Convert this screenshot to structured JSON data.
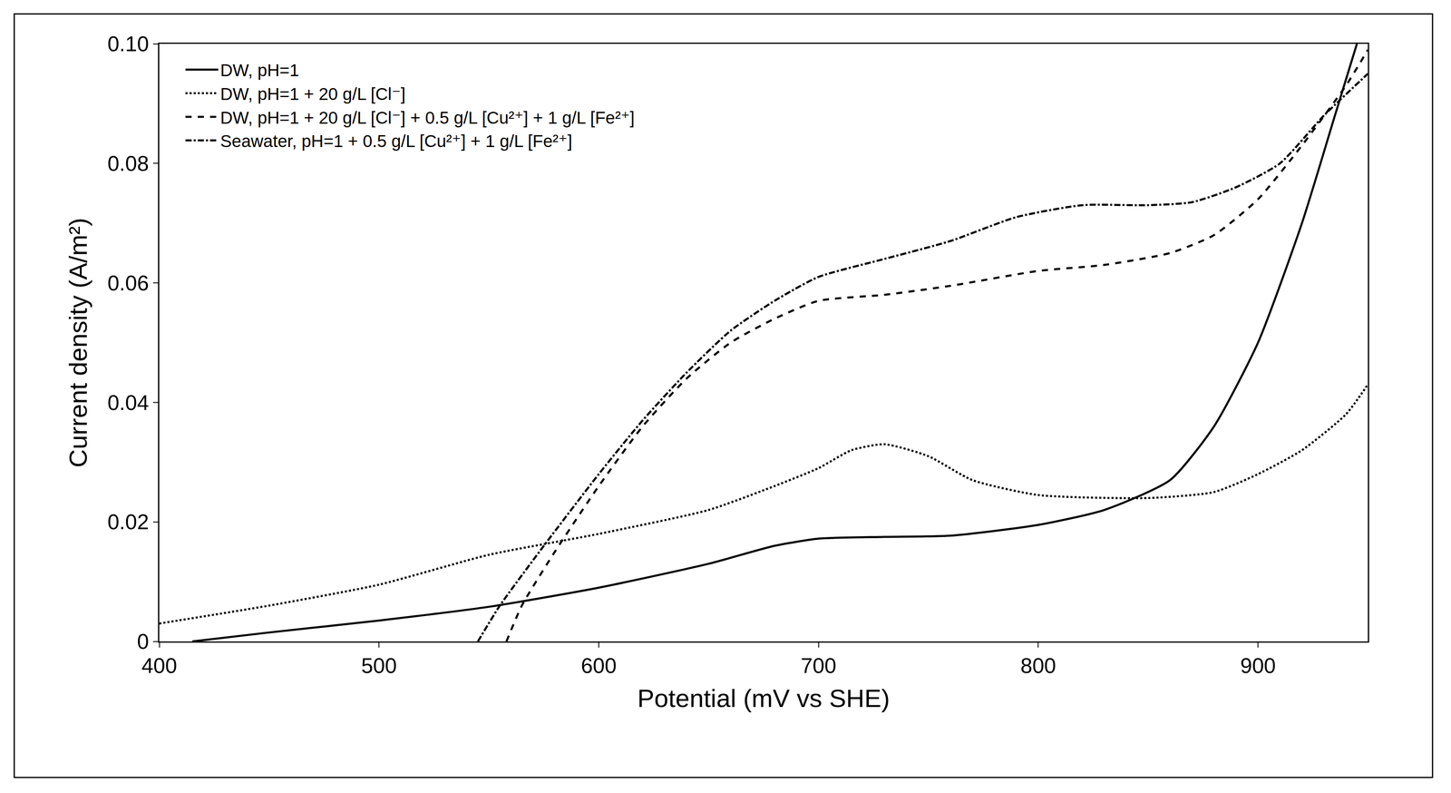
{
  "chart_data": {
    "type": "line",
    "x_label": "Potential (mV vs SHE)",
    "y_label": "Current density (A/m²)",
    "xlim": [
      400,
      950
    ],
    "xticks": [
      400,
      500,
      600,
      700,
      800,
      900
    ],
    "ylim": [
      0,
      0.1
    ],
    "yticks": [
      0,
      0.02,
      0.04,
      0.06,
      0.08,
      {
        "value": 0.1,
        "label": "0.10"
      }
    ],
    "grid": false,
    "legend": "upper left",
    "series": [
      {
        "name": "DW, pH=1",
        "color": "#000000",
        "line_style": "solid",
        "x": [
          415,
          450,
          500,
          550,
          600,
          650,
          680,
          700,
          730,
          760,
          800,
          830,
          860,
          880,
          900,
          920,
          935,
          945
        ],
        "values": [
          0,
          0.0015,
          0.0035,
          0.0058,
          0.009,
          0.013,
          0.016,
          0.0172,
          0.0175,
          0.0177,
          0.0195,
          0.022,
          0.027,
          0.036,
          0.05,
          0.07,
          0.088,
          0.1
        ]
      },
      {
        "name": "DW, pH=1 + 20 g/L [Cl⁻]",
        "color": "#000000",
        "line_style": "dot",
        "x": [
          400,
          450,
          500,
          550,
          600,
          650,
          680,
          700,
          715,
          730,
          750,
          770,
          800,
          850,
          880,
          900,
          920,
          940,
          950
        ],
        "values": [
          0.003,
          0.006,
          0.0095,
          0.0145,
          0.018,
          0.022,
          0.026,
          0.029,
          0.032,
          0.033,
          0.031,
          0.027,
          0.0245,
          0.024,
          0.025,
          0.028,
          0.032,
          0.038,
          0.043
        ]
      },
      {
        "name": "DW, pH=1 + 20 g/L [Cl⁻] + 0.5 g/L [Cu²⁺] + 1 g/L [Fe²⁺]",
        "color": "#000000",
        "line_style": "dash",
        "x": [
          558,
          565,
          580,
          600,
          620,
          640,
          660,
          680,
          700,
          730,
          760,
          800,
          830,
          860,
          880,
          900,
          920,
          940,
          950
        ],
        "values": [
          0,
          0.006,
          0.015,
          0.026,
          0.036,
          0.044,
          0.05,
          0.054,
          0.057,
          0.058,
          0.0595,
          0.062,
          0.063,
          0.065,
          0.068,
          0.074,
          0.083,
          0.093,
          0.099
        ]
      },
      {
        "name": "Seawater, pH=1 + 0.5 g/L [Cu²⁺] + 1 g/L [Fe²⁺]",
        "color": "#000000",
        "line_style": "dashdot",
        "x": [
          545,
          555,
          575,
          600,
          620,
          640,
          660,
          680,
          700,
          730,
          760,
          790,
          820,
          850,
          870,
          890,
          910,
          930,
          950
        ],
        "values": [
          0,
          0.006,
          0.016,
          0.028,
          0.037,
          0.045,
          0.052,
          0.057,
          0.061,
          0.064,
          0.067,
          0.071,
          0.073,
          0.073,
          0.0735,
          0.076,
          0.08,
          0.088,
          0.095
        ]
      }
    ]
  }
}
